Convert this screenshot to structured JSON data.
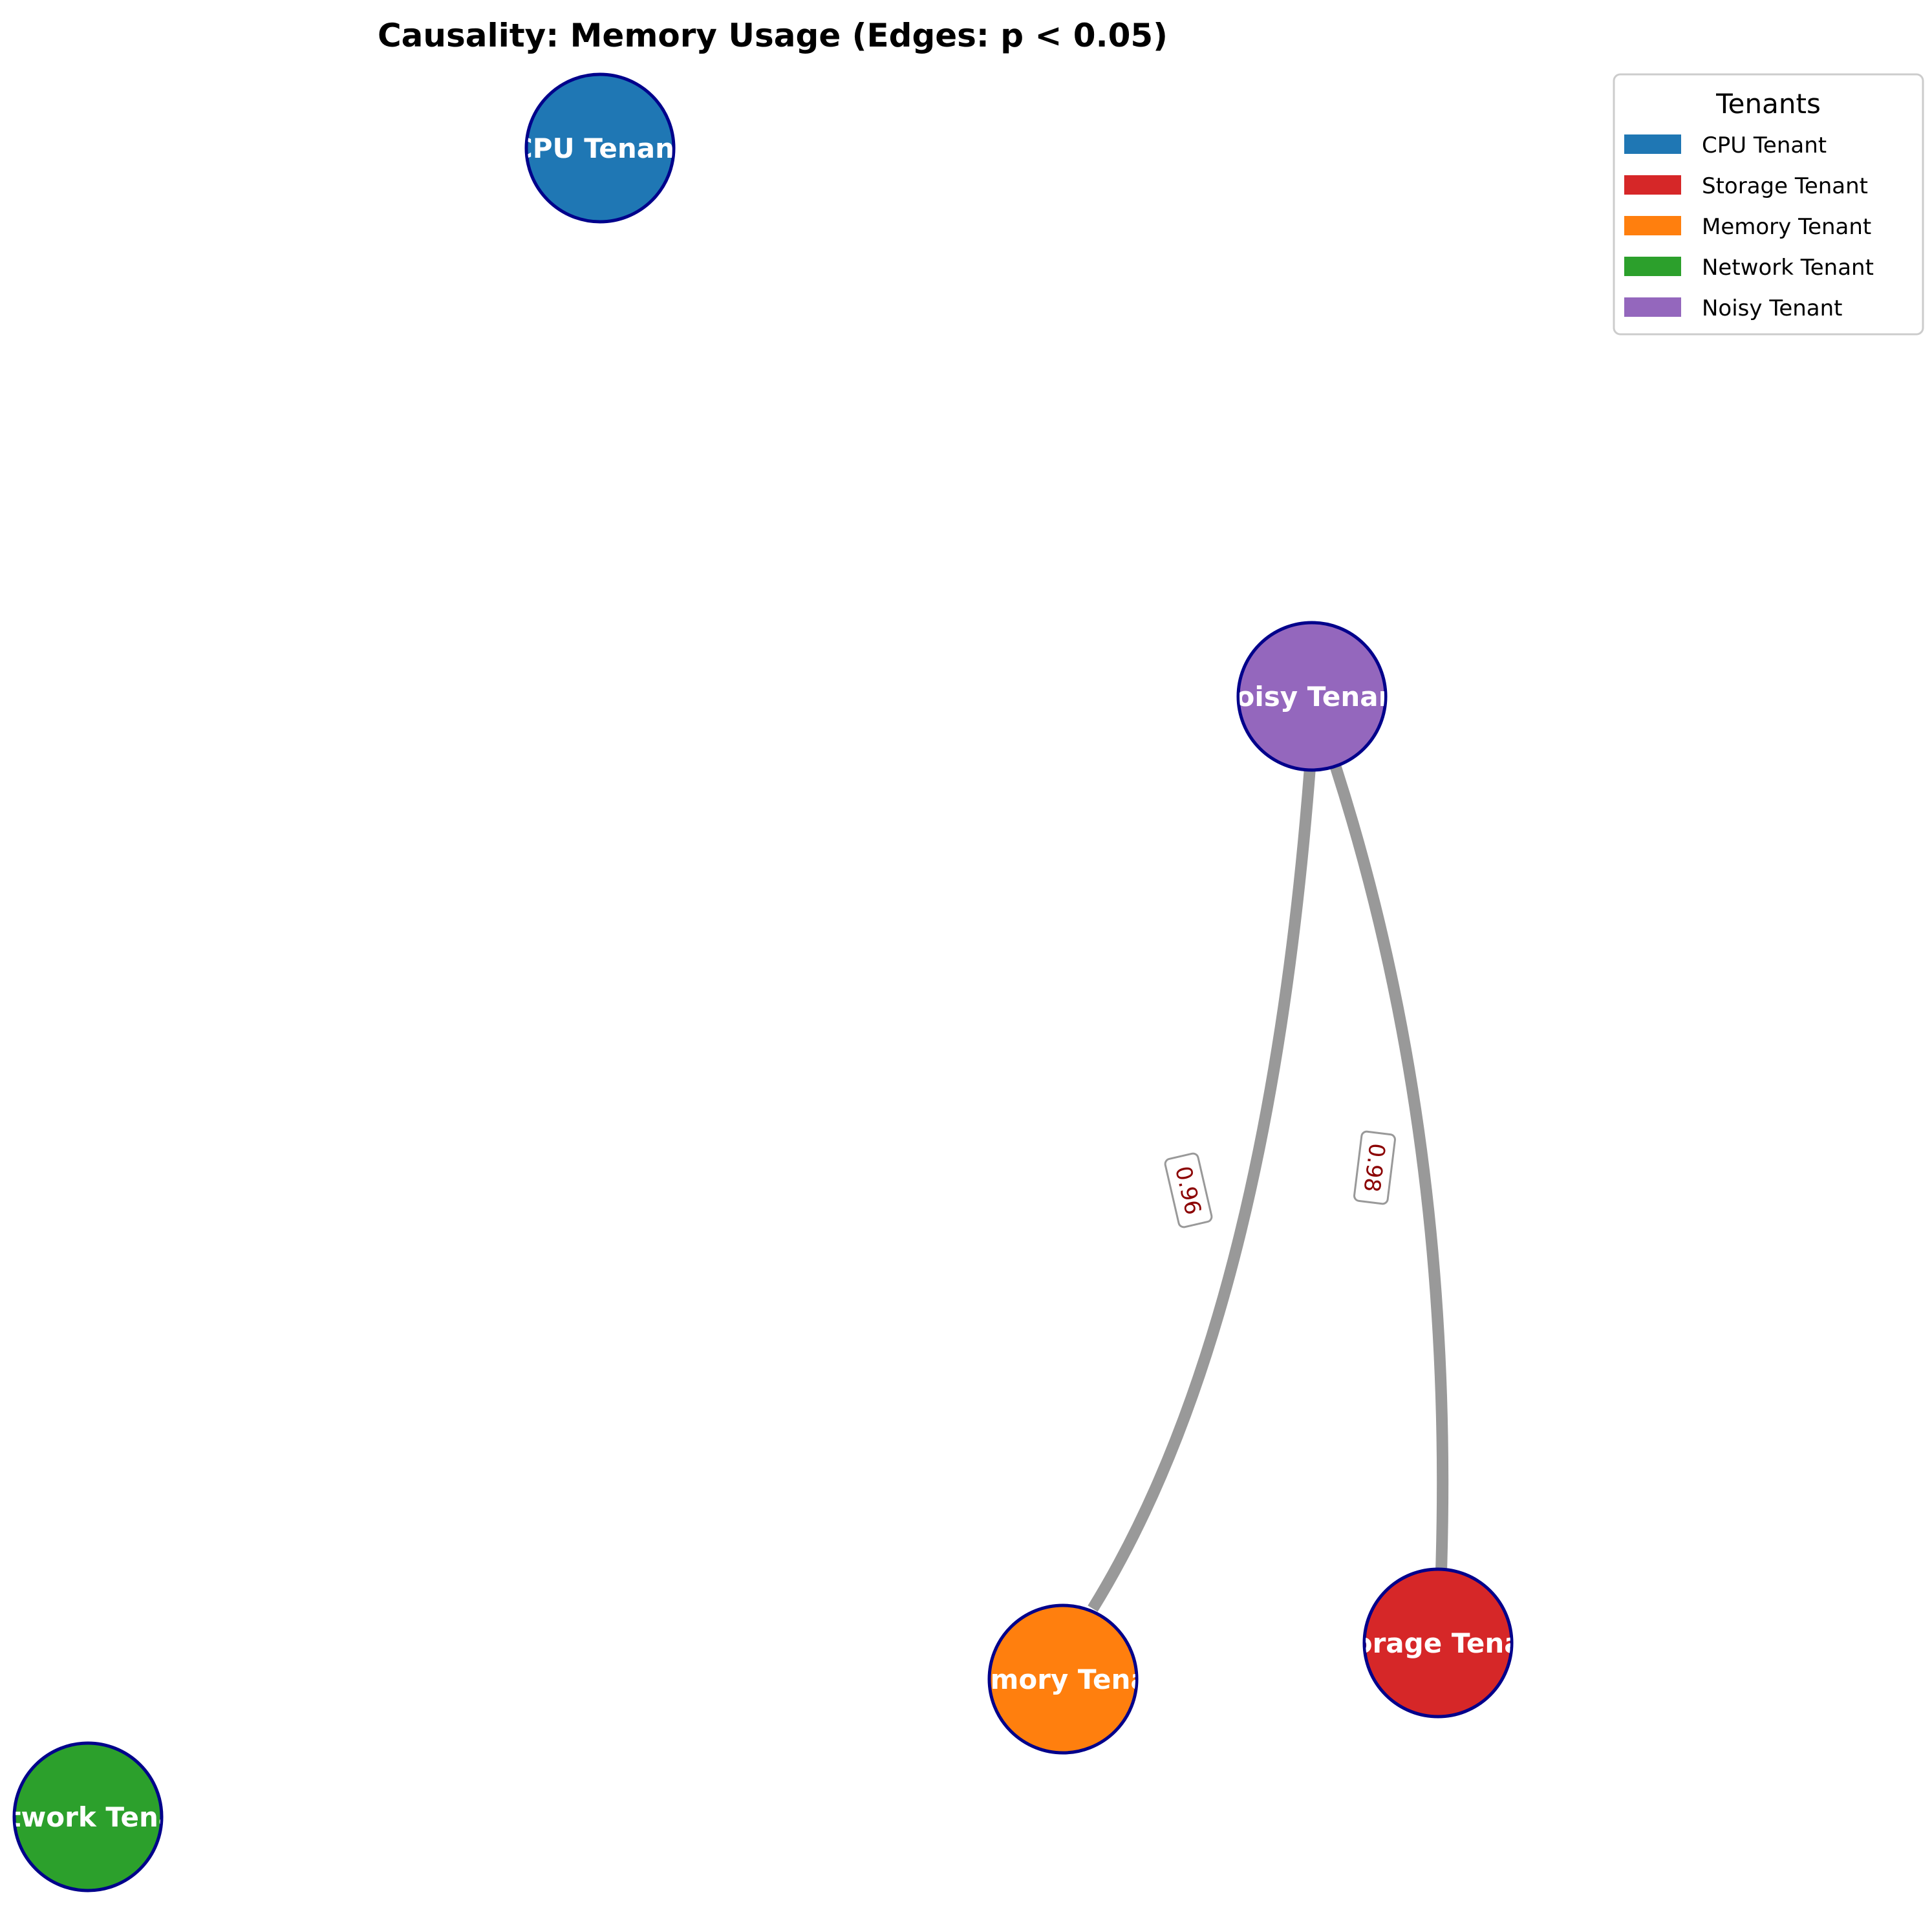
{
  "title": "Causality: Memory Usage (Edges: p < 0.05)",
  "nodes": [
    {
      "id": "cpu",
      "label": "CPU Tenant",
      "color": "#1f77b4"
    },
    {
      "id": "noisy",
      "label": "Noisy Tenant",
      "color": "#9467bd"
    },
    {
      "id": "memory",
      "label": "Memory Tenant",
      "color": "#ff7f0e"
    },
    {
      "id": "storage",
      "label": "Storage Tenant",
      "color": "#d62728"
    },
    {
      "id": "network",
      "label": "Network Tenant",
      "color": "#2ca02c"
    }
  ],
  "edges": [
    {
      "from": "noisy",
      "to": "memory",
      "weight": "0.96"
    },
    {
      "from": "noisy",
      "to": "storage",
      "weight": "0.98"
    }
  ],
  "node_outline_color": "#00008b",
  "edge_color": "#999999",
  "legend": {
    "title": "Tenants",
    "items": [
      {
        "label": "CPU Tenant",
        "color": "#1f77b4"
      },
      {
        "label": "Storage Tenant",
        "color": "#d62728"
      },
      {
        "label": "Memory Tenant",
        "color": "#ff7f0e"
      },
      {
        "label": "Network Tenant",
        "color": "#2ca02c"
      },
      {
        "label": "Noisy Tenant",
        "color": "#9467bd"
      }
    ]
  }
}
